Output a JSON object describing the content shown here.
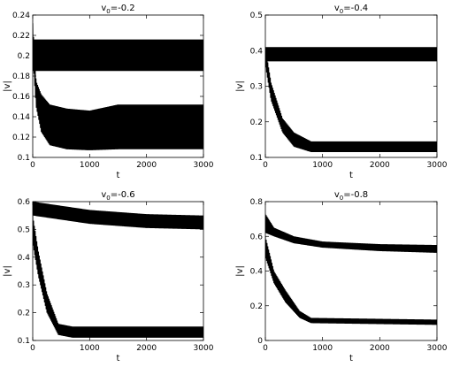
{
  "chart_data": [
    {
      "type": "line",
      "title": "v",
      "title_sub": "0",
      "title_value": "=-0.2",
      "xlabel": "t",
      "ylabel": "|v|",
      "xlim": [
        0,
        3000
      ],
      "ylim": [
        0.1,
        0.24
      ],
      "xticks": [
        0,
        1000,
        2000,
        3000
      ],
      "yticks": [
        0.1,
        0.12,
        0.14,
        0.16,
        0.18,
        0.2,
        0.22,
        0.24
      ],
      "ytick_labels": [
        "0.1",
        "0.12",
        "0.14",
        "0.16",
        "0.18",
        "0.2",
        "0.22",
        "0.24"
      ],
      "series": [
        {
          "band_lower": [
            [
              0,
              0.185
            ],
            [
              3000,
              0.185
            ]
          ],
          "band_upper": [
            [
              0,
              0.216
            ],
            [
              3000,
              0.216
            ]
          ]
        },
        {
          "band_lower": [
            [
              0,
              0.2
            ],
            [
              60,
              0.15
            ],
            [
              150,
              0.125
            ],
            [
              300,
              0.112
            ],
            [
              600,
              0.108
            ],
            [
              1000,
              0.107
            ],
            [
              1500,
              0.108
            ],
            [
              3000,
              0.108
            ]
          ],
          "band_upper": [
            [
              0,
              0.232
            ],
            [
              60,
              0.175
            ],
            [
              150,
              0.162
            ],
            [
              300,
              0.152
            ],
            [
              600,
              0.148
            ],
            [
              1000,
              0.146
            ],
            [
              1500,
              0.152
            ],
            [
              3000,
              0.152
            ]
          ]
        }
      ]
    },
    {
      "type": "line",
      "title": "v",
      "title_sub": "0",
      "title_value": "=-0.4",
      "xlabel": "t",
      "ylabel": "|v|",
      "xlim": [
        0,
        3000
      ],
      "ylim": [
        0.1,
        0.5
      ],
      "xticks": [
        0,
        1000,
        2000,
        3000
      ],
      "yticks": [
        0.1,
        0.2,
        0.3,
        0.4,
        0.5
      ],
      "ytick_labels": [
        "0.1",
        "0.2",
        "0.3",
        "0.4",
        "0.5"
      ],
      "series": [
        {
          "band_lower": [
            [
              0,
              0.37
            ],
            [
              3000,
              0.37
            ]
          ],
          "band_upper": [
            [
              0,
              0.41
            ],
            [
              3000,
              0.41
            ]
          ]
        },
        {
          "band_lower": [
            [
              0,
              0.36
            ],
            [
              100,
              0.26
            ],
            [
              300,
              0.17
            ],
            [
              500,
              0.13
            ],
            [
              800,
              0.115
            ],
            [
              3000,
              0.115
            ]
          ],
          "band_upper": [
            [
              0,
              0.41
            ],
            [
              100,
              0.31
            ],
            [
              300,
              0.21
            ],
            [
              500,
              0.17
            ],
            [
              800,
              0.145
            ],
            [
              3000,
              0.145
            ]
          ]
        }
      ]
    },
    {
      "type": "line",
      "title": "v",
      "title_sub": "0",
      "title_value": "=-0.6",
      "xlabel": "t",
      "ylabel": "|v|",
      "xlim": [
        0,
        3000
      ],
      "ylim": [
        0.1,
        0.6
      ],
      "xticks": [
        0,
        1000,
        2000,
        3000
      ],
      "yticks": [
        0.1,
        0.2,
        0.3,
        0.4,
        0.5,
        0.6
      ],
      "ytick_labels": [
        "0.1",
        "0.2",
        "0.3",
        "0.4",
        "0.5",
        "0.6"
      ],
      "series": [
        {
          "band_lower": [
            [
              0,
              0.55
            ],
            [
              1000,
              0.52
            ],
            [
              2000,
              0.505
            ],
            [
              3000,
              0.5
            ]
          ],
          "band_upper": [
            [
              0,
              0.6
            ],
            [
              1000,
              0.57
            ],
            [
              2000,
              0.555
            ],
            [
              3000,
              0.55
            ]
          ]
        },
        {
          "band_lower": [
            [
              0,
              0.45
            ],
            [
              100,
              0.33
            ],
            [
              250,
              0.2
            ],
            [
              450,
              0.12
            ],
            [
              700,
              0.11
            ],
            [
              3000,
              0.11
            ]
          ],
          "band_upper": [
            [
              0,
              0.55
            ],
            [
              100,
              0.42
            ],
            [
              250,
              0.27
            ],
            [
              450,
              0.16
            ],
            [
              700,
              0.15
            ],
            [
              3000,
              0.15
            ]
          ]
        }
      ]
    },
    {
      "type": "line",
      "title": "v",
      "title_sub": "0",
      "title_value": "=-0.8",
      "xlabel": "t",
      "ylabel": "|v|",
      "xlim": [
        0,
        3000
      ],
      "ylim": [
        0,
        0.8
      ],
      "xticks": [
        0,
        1000,
        2000,
        3000
      ],
      "yticks": [
        0,
        0.2,
        0.4,
        0.6,
        0.8
      ],
      "ytick_labels": [
        "0",
        "0.2",
        "0.4",
        "0.6",
        "0.8"
      ],
      "series": [
        {
          "band_lower": [
            [
              0,
              0.62
            ],
            [
              150,
              0.6
            ],
            [
              500,
              0.56
            ],
            [
              1000,
              0.535
            ],
            [
              2000,
              0.515
            ],
            [
              3000,
              0.505
            ]
          ],
          "band_upper": [
            [
              0,
              0.73
            ],
            [
              150,
              0.65
            ],
            [
              500,
              0.6
            ],
            [
              1000,
              0.57
            ],
            [
              2000,
              0.555
            ],
            [
              3000,
              0.55
            ]
          ]
        },
        {
          "band_lower": [
            [
              0,
              0.48
            ],
            [
              150,
              0.33
            ],
            [
              350,
              0.22
            ],
            [
              600,
              0.13
            ],
            [
              800,
              0.1
            ],
            [
              3000,
              0.09
            ]
          ],
          "band_upper": [
            [
              0,
              0.6
            ],
            [
              150,
              0.4
            ],
            [
              350,
              0.29
            ],
            [
              600,
              0.17
            ],
            [
              800,
              0.13
            ],
            [
              3000,
              0.12
            ]
          ]
        }
      ]
    }
  ]
}
